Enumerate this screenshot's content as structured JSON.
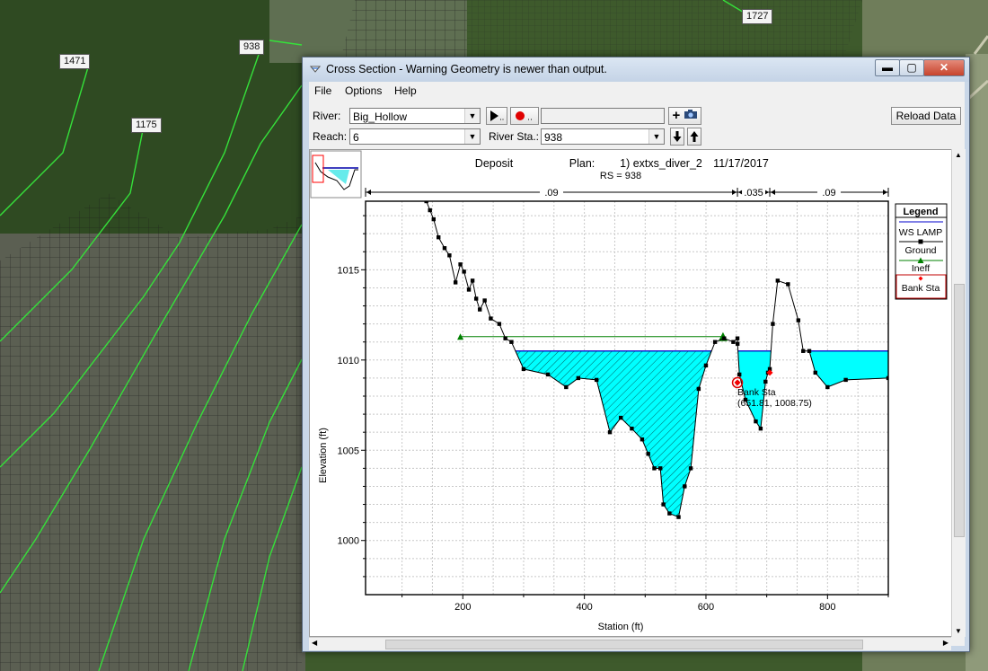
{
  "map": {
    "labels": [
      "1471",
      "1175",
      "938",
      "1727"
    ]
  },
  "window": {
    "title": "Cross Section - Warning Geometry is newer than output.",
    "caption_buttons": {
      "minimize": "▬",
      "maximize": "▢",
      "close": "✕"
    }
  },
  "menu": [
    "File",
    "Options",
    "Help"
  ],
  "toolbar": {
    "river_label": "River:",
    "river_value": "Big_Hollow",
    "reach_label": "Reach:",
    "reach_value": "6",
    "river_sta_label": "River Sta.:",
    "river_sta_value": "938",
    "play_icon": "play-icon",
    "record_icon": "record-icon",
    "add_label": "+",
    "camera_icon": "camera-icon",
    "down_icon": "arrow-down-icon",
    "up_icon": "arrow-up-icon",
    "reload_label": "Reload Data",
    "textbox_value": ""
  },
  "chart_data": {
    "type": "line",
    "title_left": "Deposit",
    "title_plan": "Plan:",
    "title_plan_name": "1) extxs_diver_2",
    "title_date": "11/17/2017",
    "subtitle": "RS = 938",
    "xlabel": "Station (ft)",
    "ylabel": "Elevation (ft)",
    "xlim": [
      40,
      900
    ],
    "ylim": [
      997,
      1018.8
    ],
    "xticks": [
      200,
      400,
      600,
      800
    ],
    "yticks": [
      1000,
      1005,
      1010,
      1015
    ],
    "grid": true,
    "manning_n": [
      {
        "label": ".09",
        "from": 40,
        "to": 651.81
      },
      {
        "label": ".035",
        "from": 651.81,
        "to": 705
      },
      {
        "label": ".09",
        "from": 705,
        "to": 900
      }
    ],
    "legend": {
      "title": "Legend",
      "placement": "right",
      "entries": [
        {
          "name": "WS LAMP",
          "color": "#0000cc"
        },
        {
          "name": "Ground",
          "color": "#000000"
        },
        {
          "name": "Ineff",
          "color": "#008000"
        },
        {
          "name": "Bank Sta",
          "color": "#ff0000"
        }
      ]
    },
    "series": [
      {
        "name": "Ground",
        "x": [
          140,
          146,
          152,
          160,
          170,
          178,
          188,
          196,
          202,
          210,
          216,
          222,
          228,
          236,
          246,
          260,
          270,
          280,
          300,
          340,
          370,
          390,
          420,
          442,
          460,
          478,
          495,
          505,
          515,
          525,
          530,
          540,
          555,
          565,
          575,
          588,
          600,
          615,
          630,
          645,
          651.81,
          652,
          655,
          665,
          682,
          690,
          698,
          702,
          705,
          710,
          718,
          735,
          752,
          760,
          770,
          780,
          800,
          830,
          900
        ],
        "y": [
          1018.8,
          1018.3,
          1017.8,
          1016.8,
          1016.2,
          1015.8,
          1014.3,
          1015.3,
          1014.9,
          1013.9,
          1014.4,
          1013.4,
          1012.8,
          1013.3,
          1012.3,
          1012.0,
          1011.2,
          1011.0,
          1009.5,
          1009.2,
          1008.5,
          1009.0,
          1008.9,
          1006.0,
          1006.8,
          1006.2,
          1005.6,
          1004.8,
          1004.0,
          1004.0,
          1002.0,
          1001.5,
          1001.3,
          1003.0,
          1004.0,
          1008.4,
          1009.7,
          1011.0,
          1011.2,
          1011.0,
          1011.2,
          1010.9,
          1009.2,
          1007.8,
          1006.6,
          1006.2,
          1008.8,
          1009.3,
          1009.5,
          1012.0,
          1014.4,
          1014.2,
          1012.2,
          1010.5,
          1010.5,
          1009.3,
          1008.5,
          1008.9,
          1009.0
        ]
      },
      {
        "name": "WS LAMP",
        "y": 1010.5
      },
      {
        "name": "Ineff",
        "x": [
          196,
          628
        ],
        "y": 1011.3
      },
      {
        "name": "Bank Sta",
        "x": [
          651.81,
          705
        ],
        "y": [
          1008.75,
          1009.3
        ]
      }
    ],
    "annotation": {
      "text": "Bank Sta",
      "coords": "(651.81, 1008.75)"
    }
  }
}
